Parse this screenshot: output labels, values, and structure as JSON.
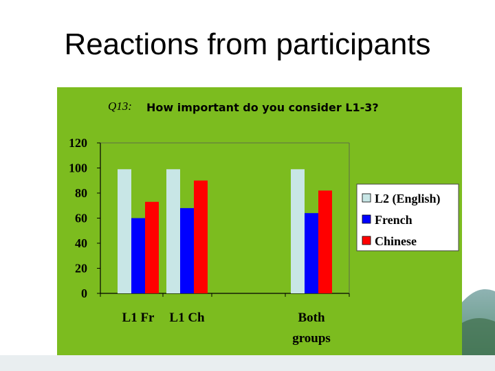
{
  "slide": {
    "title": "Reactions from participants"
  },
  "colors": {
    "chart_background": "#7cbc1f",
    "l2_english": "#c8e6e6",
    "french": "#0000ff",
    "chinese": "#ff0000"
  },
  "chart_data": {
    "type": "bar",
    "title_prefix": "Q13:",
    "title": "How important do you consider L1-3?",
    "categories": [
      "L1 Fr",
      "L1 Ch",
      "Both groups"
    ],
    "series": [
      {
        "name": "L2 (English)",
        "values": [
          99,
          99,
          99
        ]
      },
      {
        "name": "French",
        "values": [
          60,
          68,
          64
        ]
      },
      {
        "name": "Chinese",
        "values": [
          73,
          90,
          82
        ]
      }
    ],
    "ylim": [
      0,
      120
    ],
    "yticks": [
      0,
      20,
      40,
      60,
      80,
      100,
      120
    ],
    "grid": false,
    "legend": "right"
  }
}
